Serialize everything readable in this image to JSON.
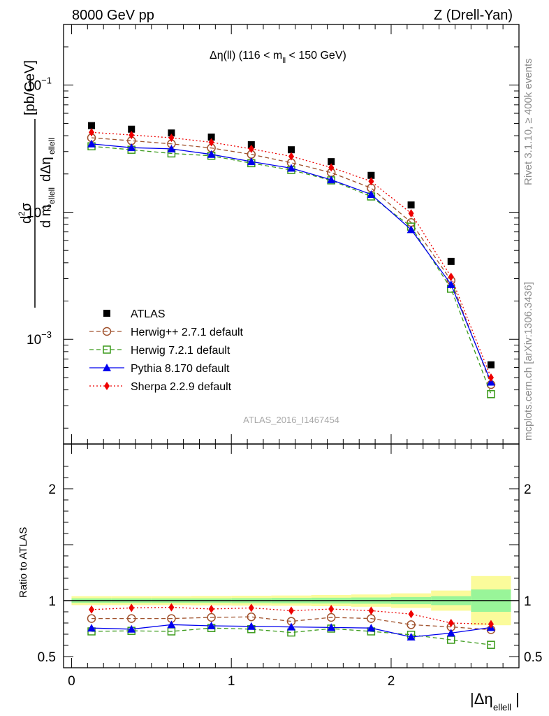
{
  "header": {
    "left": "8000 GeV pp",
    "right": "Z (Drell-Yan)"
  },
  "side_labels": {
    "rivet": "Rivet 3.1.10, ≥ 400k events",
    "mcplots": "mcplots.cern.ch [arXiv:1306.3436]"
  },
  "colors": {
    "atlas": "#000000",
    "herwigpp": "#a0522d",
    "herwig7": "#3a9a1a",
    "pythia": "#0000ee",
    "sherpa": "#ee0000",
    "band_inner": "#99f599",
    "band_outer": "#fbfb9b"
  },
  "chart_data": [
    {
      "type": "line",
      "title": "Δη(ll) (116 < m_ll < 150 GeV)",
      "title_main": "Δη(ll) (116 < m",
      "title_sub": "ll",
      "title_tail": " < 150 GeV)",
      "ylabel": "d²σ / d m_ellell dΔη_ellell [pb/GeV]",
      "yscale": "log",
      "ylim": [
        0.00015,
        0.3
      ],
      "xlim": [
        -0.05,
        2.8
      ],
      "y_tick_labels": [
        "10^-1",
        "10^-2",
        "10^-3"
      ],
      "watermark": "ATLAS_2016_I1467454",
      "legend_position": "bottom-left",
      "x": [
        0.125,
        0.375,
        0.625,
        0.875,
        1.125,
        1.375,
        1.625,
        1.875,
        2.125,
        2.375,
        2.625
      ],
      "series": [
        {
          "name": "ATLAS",
          "key": "atlas",
          "marker": "square-filled",
          "line": "none",
          "values": [
            0.048,
            0.045,
            0.042,
            0.039,
            0.034,
            0.031,
            0.025,
            0.0195,
            0.0114,
            0.0041,
            0.00063
          ]
        },
        {
          "name": "Herwig++ 2.7.1 default",
          "key": "herwigpp",
          "marker": "circle-open",
          "line": "dashed",
          "values": [
            0.0385,
            0.0365,
            0.0345,
            0.032,
            0.0285,
            0.0245,
            0.0205,
            0.0155,
            0.0083,
            0.0029,
            0.00044
          ]
        },
        {
          "name": "Herwig 7.2.1 default",
          "key": "herwig7",
          "marker": "square-open",
          "line": "dashed",
          "values": [
            0.033,
            0.031,
            0.029,
            0.0278,
            0.0243,
            0.0215,
            0.0178,
            0.0133,
            0.0077,
            0.0025,
            0.00037
          ]
        },
        {
          "name": "Pythia 8.170 default",
          "key": "pythia",
          "marker": "triangle-filled",
          "line": "solid",
          "values": [
            0.0345,
            0.0322,
            0.0315,
            0.0285,
            0.025,
            0.0222,
            0.018,
            0.0138,
            0.0073,
            0.0027,
            0.00046
          ]
        },
        {
          "name": "Sherpa 2.2.9 default",
          "key": "sherpa",
          "marker": "diamond-filled",
          "line": "dotted",
          "values": [
            0.0425,
            0.0405,
            0.0385,
            0.0355,
            0.0315,
            0.0275,
            0.0225,
            0.0175,
            0.0098,
            0.0031,
            0.0005
          ]
        }
      ]
    },
    {
      "type": "line",
      "ylabel": "Ratio to ATLAS",
      "ylim": [
        0.4,
        2.4
      ],
      "xlim": [
        -0.05,
        2.8
      ],
      "y_tick_labels": [
        "2",
        "1",
        "0.5"
      ],
      "y_tick_values": [
        2,
        1,
        0.5
      ],
      "x_tick_labels": [
        "0",
        "1",
        "2"
      ],
      "x_tick_values": [
        0,
        1,
        2
      ],
      "xlabel": "|Δη_ellell|",
      "x": [
        0.125,
        0.375,
        0.625,
        0.875,
        1.125,
        1.375,
        1.625,
        1.875,
        2.125,
        2.375,
        2.625
      ],
      "bins": [
        [
          0,
          0.25
        ],
        [
          0.25,
          0.5
        ],
        [
          0.5,
          0.75
        ],
        [
          0.75,
          1.0
        ],
        [
          1.0,
          1.25
        ],
        [
          1.25,
          1.5
        ],
        [
          1.5,
          1.75
        ],
        [
          1.75,
          2.0
        ],
        [
          2.0,
          2.25
        ],
        [
          2.25,
          2.5
        ],
        [
          2.5,
          2.75
        ]
      ],
      "band_inner": [
        0.02,
        0.02,
        0.02,
        0.02,
        0.022,
        0.024,
        0.026,
        0.028,
        0.032,
        0.04,
        0.1
      ],
      "band_outer": [
        0.04,
        0.04,
        0.04,
        0.042,
        0.044,
        0.046,
        0.05,
        0.055,
        0.065,
        0.09,
        0.22
      ],
      "series": [
        {
          "name": "Herwig++ 2.7.1 default",
          "key": "herwigpp",
          "marker": "circle-open",
          "line": "dashed",
          "values": [
            0.84,
            0.84,
            0.84,
            0.85,
            0.855,
            0.815,
            0.85,
            0.84,
            0.785,
            0.765,
            0.74
          ]
        },
        {
          "name": "Herwig 7.2.1 default",
          "key": "herwig7",
          "marker": "square-open",
          "line": "dashed",
          "values": [
            0.725,
            0.73,
            0.725,
            0.755,
            0.745,
            0.715,
            0.75,
            0.725,
            0.695,
            0.65,
            0.605
          ]
        },
        {
          "name": "Pythia 8.170 default",
          "key": "pythia",
          "marker": "triangle-filled",
          "line": "solid",
          "values": [
            0.755,
            0.745,
            0.785,
            0.775,
            0.77,
            0.765,
            0.76,
            0.755,
            0.675,
            0.71,
            0.76
          ]
        },
        {
          "name": "Sherpa 2.2.9 default",
          "key": "sherpa",
          "marker": "diamond-filled",
          "line": "dotted",
          "values": [
            0.92,
            0.935,
            0.94,
            0.925,
            0.935,
            0.91,
            0.925,
            0.91,
            0.88,
            0.8,
            0.79
          ]
        }
      ]
    }
  ]
}
